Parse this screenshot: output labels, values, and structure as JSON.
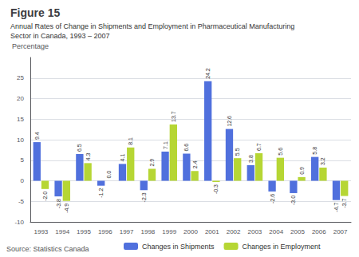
{
  "chart_data": {
    "type": "bar",
    "title": "Figure 15",
    "subtitle": "Annual Rates of Change in Shipments and Employment in Pharmaceutical Manufacturing\nSector in Canada, 1993 – 2007",
    "ylabel": "Percentage",
    "source": "Source: Statistics Canada",
    "categories": [
      "1993",
      "1994",
      "1995",
      "1996",
      "1997",
      "1998",
      "1999",
      "2000",
      "2001",
      "2002",
      "2003",
      "2004",
      "2005",
      "2006",
      "2007"
    ],
    "series": [
      {
        "name": "Changes in Shipments",
        "values": [
          9.4,
          -3.8,
          6.5,
          -1.2,
          4.1,
          -2.3,
          7.1,
          6.6,
          24.2,
          12.6,
          3.8,
          -2.6,
          -3.0,
          5.8,
          -4.7
        ],
        "value_labels": [
          "9.4",
          "-3.8",
          "6.5",
          "-1.2",
          "4.1",
          "-2.3",
          "7.1",
          "6.6",
          "24.2",
          "12.6",
          "3.8",
          "-2.6",
          "-3.0",
          "5.8",
          "-4.7"
        ]
      },
      {
        "name": "Changes in Employment",
        "values": [
          -2.0,
          -4.9,
          4.3,
          0.0,
          8.1,
          2.9,
          13.7,
          2.4,
          -0.3,
          5.5,
          6.7,
          5.6,
          0.9,
          3.2,
          -3.7
        ],
        "value_labels": [
          "-2.0",
          "-4.9",
          "4.3",
          "0.0",
          "8.1",
          "2.9",
          "13.7",
          "2.4",
          "-0.3",
          "5.5",
          "6.7",
          "5.6",
          "0.9",
          "3.2",
          "-3.7"
        ]
      }
    ],
    "ylim": [
      -10,
      30
    ],
    "yticks": [
      -10,
      -5,
      0,
      5,
      10,
      15,
      20,
      25
    ],
    "grid": true,
    "legend": "bottom",
    "data_labels": true
  }
}
